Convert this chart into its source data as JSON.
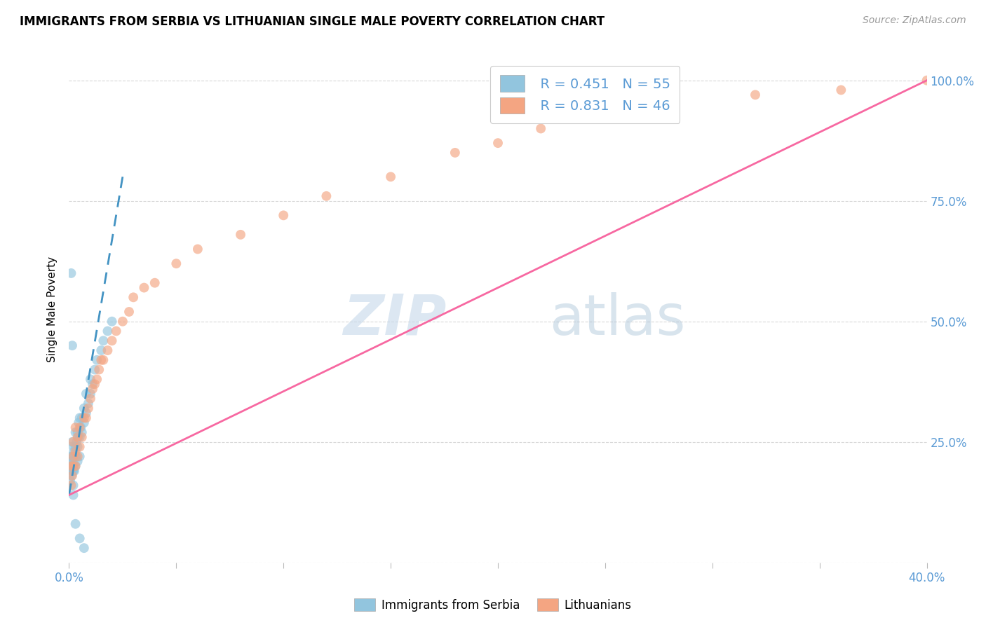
{
  "title": "IMMIGRANTS FROM SERBIA VS LITHUANIAN SINGLE MALE POVERTY CORRELATION CHART",
  "source": "Source: ZipAtlas.com",
  "ylabel": "Single Male Poverty",
  "legend_label1": "Immigrants from Serbia",
  "legend_label2": "Lithuanians",
  "legend_r1": "R = 0.451",
  "legend_n1": "N = 55",
  "legend_r2": "R = 0.831",
  "legend_n2": "N = 46",
  "color_blue": "#92c5de",
  "color_pink": "#f4a582",
  "color_blue_line": "#4393c3",
  "color_pink_line": "#f768a1",
  "watermark_zip": "ZIP",
  "watermark_atlas": "atlas",
  "xmin": 0.0,
  "xmax": 0.4,
  "ymin": 0.0,
  "ymax": 1.05,
  "serbia_x": [
    0.0005,
    0.0008,
    0.001,
    0.001,
    0.0012,
    0.0012,
    0.0015,
    0.0015,
    0.0015,
    0.0018,
    0.002,
    0.002,
    0.002,
    0.002,
    0.0022,
    0.0022,
    0.0025,
    0.0025,
    0.003,
    0.003,
    0.003,
    0.003,
    0.0032,
    0.0035,
    0.004,
    0.004,
    0.004,
    0.0042,
    0.0045,
    0.005,
    0.005,
    0.005,
    0.0055,
    0.006,
    0.006,
    0.007,
    0.007,
    0.008,
    0.008,
    0.009,
    0.01,
    0.01,
    0.011,
    0.012,
    0.013,
    0.015,
    0.016,
    0.018,
    0.02,
    0.001,
    0.0015,
    0.002,
    0.003,
    0.005,
    0.007
  ],
  "serbia_y": [
    0.17,
    0.19,
    0.2,
    0.22,
    0.18,
    0.21,
    0.2,
    0.22,
    0.25,
    0.19,
    0.16,
    0.19,
    0.21,
    0.24,
    0.2,
    0.23,
    0.19,
    0.22,
    0.2,
    0.22,
    0.24,
    0.27,
    0.22,
    0.25,
    0.21,
    0.24,
    0.27,
    0.26,
    0.29,
    0.22,
    0.26,
    0.3,
    0.28,
    0.27,
    0.3,
    0.29,
    0.32,
    0.31,
    0.35,
    0.33,
    0.35,
    0.38,
    0.37,
    0.4,
    0.42,
    0.44,
    0.46,
    0.48,
    0.5,
    0.6,
    0.45,
    0.14,
    0.08,
    0.05,
    0.03
  ],
  "lithuania_x": [
    0.001,
    0.001,
    0.0015,
    0.002,
    0.002,
    0.002,
    0.003,
    0.003,
    0.003,
    0.004,
    0.004,
    0.005,
    0.005,
    0.006,
    0.007,
    0.008,
    0.009,
    0.01,
    0.011,
    0.012,
    0.013,
    0.014,
    0.015,
    0.016,
    0.018,
    0.02,
    0.022,
    0.025,
    0.028,
    0.03,
    0.035,
    0.04,
    0.05,
    0.06,
    0.08,
    0.1,
    0.12,
    0.15,
    0.18,
    0.2,
    0.22,
    0.25,
    0.28,
    0.32,
    0.36,
    0.4
  ],
  "lithuania_y": [
    0.16,
    0.2,
    0.18,
    0.2,
    0.22,
    0.25,
    0.2,
    0.23,
    0.28,
    0.22,
    0.26,
    0.24,
    0.28,
    0.26,
    0.3,
    0.3,
    0.32,
    0.34,
    0.36,
    0.37,
    0.38,
    0.4,
    0.42,
    0.42,
    0.44,
    0.46,
    0.48,
    0.5,
    0.52,
    0.55,
    0.57,
    0.58,
    0.62,
    0.65,
    0.68,
    0.72,
    0.76,
    0.8,
    0.85,
    0.87,
    0.9,
    0.93,
    0.96,
    0.97,
    0.98,
    1.0
  ],
  "serbia_line_x": [
    0.0,
    0.025
  ],
  "serbia_line_y": [
    0.14,
    0.8
  ],
  "lithuania_line_x": [
    0.0,
    0.4
  ],
  "lithuania_line_y": [
    0.14,
    1.0
  ]
}
